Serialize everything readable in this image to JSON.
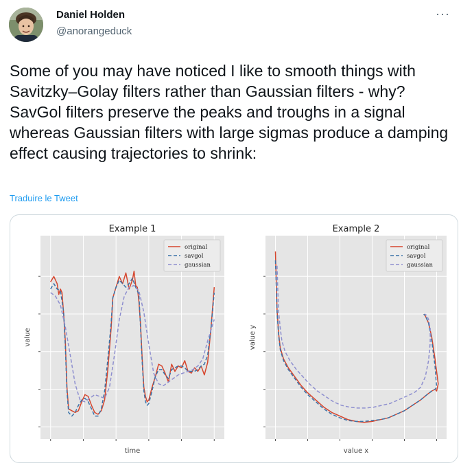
{
  "author": {
    "name": "Daniel Holden",
    "handle": "@anorangeduck"
  },
  "menu": {
    "more_label": "···"
  },
  "tweet": {
    "text": "Some of you may have noticed I like to smooth things with Savitzky–Golay filters rather than Gaussian filters - why? SavGol filters preserve the peaks and troughs in a signal whereas Gaussian filters with large sigmas produce a damping effect causing trajectories to shrink:",
    "translate_label": "Traduire le Tweet"
  },
  "colors": {
    "original": "#d6462e",
    "savgol": "#3b73a8",
    "gaussian": "#8e8fcf",
    "plot_bg": "#e5e5e5",
    "grid": "#ffffff"
  },
  "chart_data": [
    {
      "type": "line",
      "title": "Example 1",
      "xlabel": "time",
      "ylabel": "value",
      "grid": true,
      "legend": "top-right",
      "xlim": [
        0,
        100
      ],
      "ylim": [
        0,
        100
      ],
      "series": [
        {
          "name": "original",
          "x": [
            0,
            2,
            4,
            5,
            6,
            7,
            8,
            9,
            10,
            11,
            13,
            15,
            17,
            19,
            21,
            23,
            25,
            27,
            29,
            31,
            33,
            35,
            37,
            38,
            40,
            42,
            44,
            46,
            48,
            50,
            51,
            52,
            53,
            54,
            55,
            56,
            57,
            58,
            59,
            60,
            62,
            64,
            66,
            68,
            70,
            72,
            74,
            76,
            78,
            80,
            82,
            84,
            86,
            88,
            90,
            92,
            94,
            96,
            98,
            100
          ],
          "y": [
            81,
            84,
            80,
            74,
            77,
            75,
            63,
            48,
            22,
            10,
            9,
            8,
            9,
            14,
            18,
            17,
            12,
            8,
            7,
            9,
            15,
            32,
            55,
            72,
            78,
            84,
            80,
            86,
            77,
            82,
            87,
            79,
            78,
            70,
            57,
            38,
            22,
            17,
            14,
            15,
            22,
            28,
            35,
            34,
            30,
            25,
            35,
            31,
            34,
            33,
            37,
            31,
            30,
            33,
            31,
            34,
            29,
            36,
            55,
            78
          ]
        },
        {
          "name": "savgol",
          "x": [
            0,
            2,
            4,
            6,
            8,
            9,
            10,
            11,
            13,
            15,
            17,
            19,
            21,
            23,
            25,
            27,
            29,
            31,
            33,
            35,
            37,
            38,
            40,
            42,
            44,
            46,
            48,
            50,
            52,
            54,
            55,
            56,
            57,
            58,
            59,
            60,
            62,
            64,
            66,
            68,
            70,
            72,
            74,
            76,
            78,
            80,
            82,
            84,
            86,
            88,
            90,
            92,
            94,
            96,
            98,
            100
          ],
          "y": [
            77,
            80,
            77,
            76,
            64,
            45,
            20,
            8,
            6,
            8,
            12,
            15,
            16,
            14,
            10,
            6,
            6,
            10,
            20,
            38,
            58,
            72,
            78,
            82,
            80,
            78,
            80,
            83,
            78,
            74,
            55,
            36,
            20,
            14,
            12,
            13,
            20,
            28,
            32,
            32,
            29,
            27,
            32,
            33,
            34,
            34,
            33,
            31,
            31,
            31,
            32,
            34,
            35,
            40,
            55,
            75
          ]
        },
        {
          "name": "gaussian",
          "x": [
            0,
            3,
            6,
            9,
            12,
            15,
            18,
            21,
            24,
            27,
            30,
            33,
            36,
            39,
            42,
            45,
            48,
            51,
            54,
            57,
            60,
            63,
            66,
            69,
            72,
            75,
            78,
            81,
            84,
            87,
            90,
            93,
            96,
            100
          ],
          "y": [
            75,
            73,
            68,
            56,
            40,
            24,
            15,
            14,
            16,
            18,
            17,
            16,
            22,
            40,
            60,
            73,
            78,
            79,
            76,
            64,
            46,
            30,
            24,
            23,
            25,
            27,
            29,
            30,
            31,
            32,
            34,
            38,
            48,
            60
          ]
        }
      ]
    },
    {
      "type": "line",
      "title": "Example 2",
      "xlabel": "value x",
      "ylabel": "value y",
      "grid": true,
      "legend": "top-right",
      "xlim": [
        0,
        100
      ],
      "ylim": [
        0,
        100
      ],
      "series": [
        {
          "name": "original",
          "x": [
            0,
            0.5,
            1,
            2,
            3,
            5,
            8,
            12,
            16,
            20,
            25,
            30,
            35,
            40,
            45,
            50,
            55,
            60,
            65,
            70,
            75,
            80,
            85,
            90,
            94,
            97,
            99,
            100,
            101,
            99,
            97,
            95,
            93,
            92
          ],
          "y": [
            98,
            80,
            65,
            52,
            44,
            38,
            33,
            28,
            23,
            19,
            15,
            11,
            8,
            6,
            4,
            3,
            2.5,
            3,
            4,
            5,
            7,
            9,
            12,
            15,
            18,
            20,
            21,
            20,
            24,
            38,
            50,
            58,
            62,
            63
          ]
        },
        {
          "name": "savgol",
          "x": [
            0,
            0.5,
            1,
            2,
            3,
            5,
            8,
            12,
            16,
            20,
            25,
            30,
            35,
            40,
            45,
            50,
            55,
            60,
            65,
            70,
            75,
            80,
            85,
            90,
            94,
            97,
            99,
            100,
            99,
            97,
            95,
            93,
            92
          ],
          "y": [
            93,
            78,
            64,
            51,
            43,
            37,
            32,
            27,
            22,
            18,
            14,
            10,
            7,
            5,
            3.5,
            3,
            3,
            3.5,
            4,
            5,
            7,
            9,
            12,
            15,
            18,
            20,
            21,
            22,
            34,
            48,
            58,
            62,
            63
          ]
        },
        {
          "name": "gaussian",
          "x": [
            1,
            1.5,
            2,
            3,
            4,
            6,
            9,
            13,
            17,
            21,
            26,
            31,
            36,
            41,
            46,
            51,
            56,
            61,
            66,
            71,
            76,
            81,
            86,
            90,
            93,
            95,
            96,
            96,
            95,
            94,
            93
          ],
          "y": [
            90,
            76,
            64,
            55,
            48,
            42,
            37,
            32,
            28,
            24,
            20,
            17,
            14,
            12,
            11,
            10.5,
            10.5,
            11,
            12,
            13,
            15,
            17,
            19,
            22,
            28,
            37,
            47,
            55,
            60,
            62,
            63
          ]
        }
      ]
    }
  ]
}
